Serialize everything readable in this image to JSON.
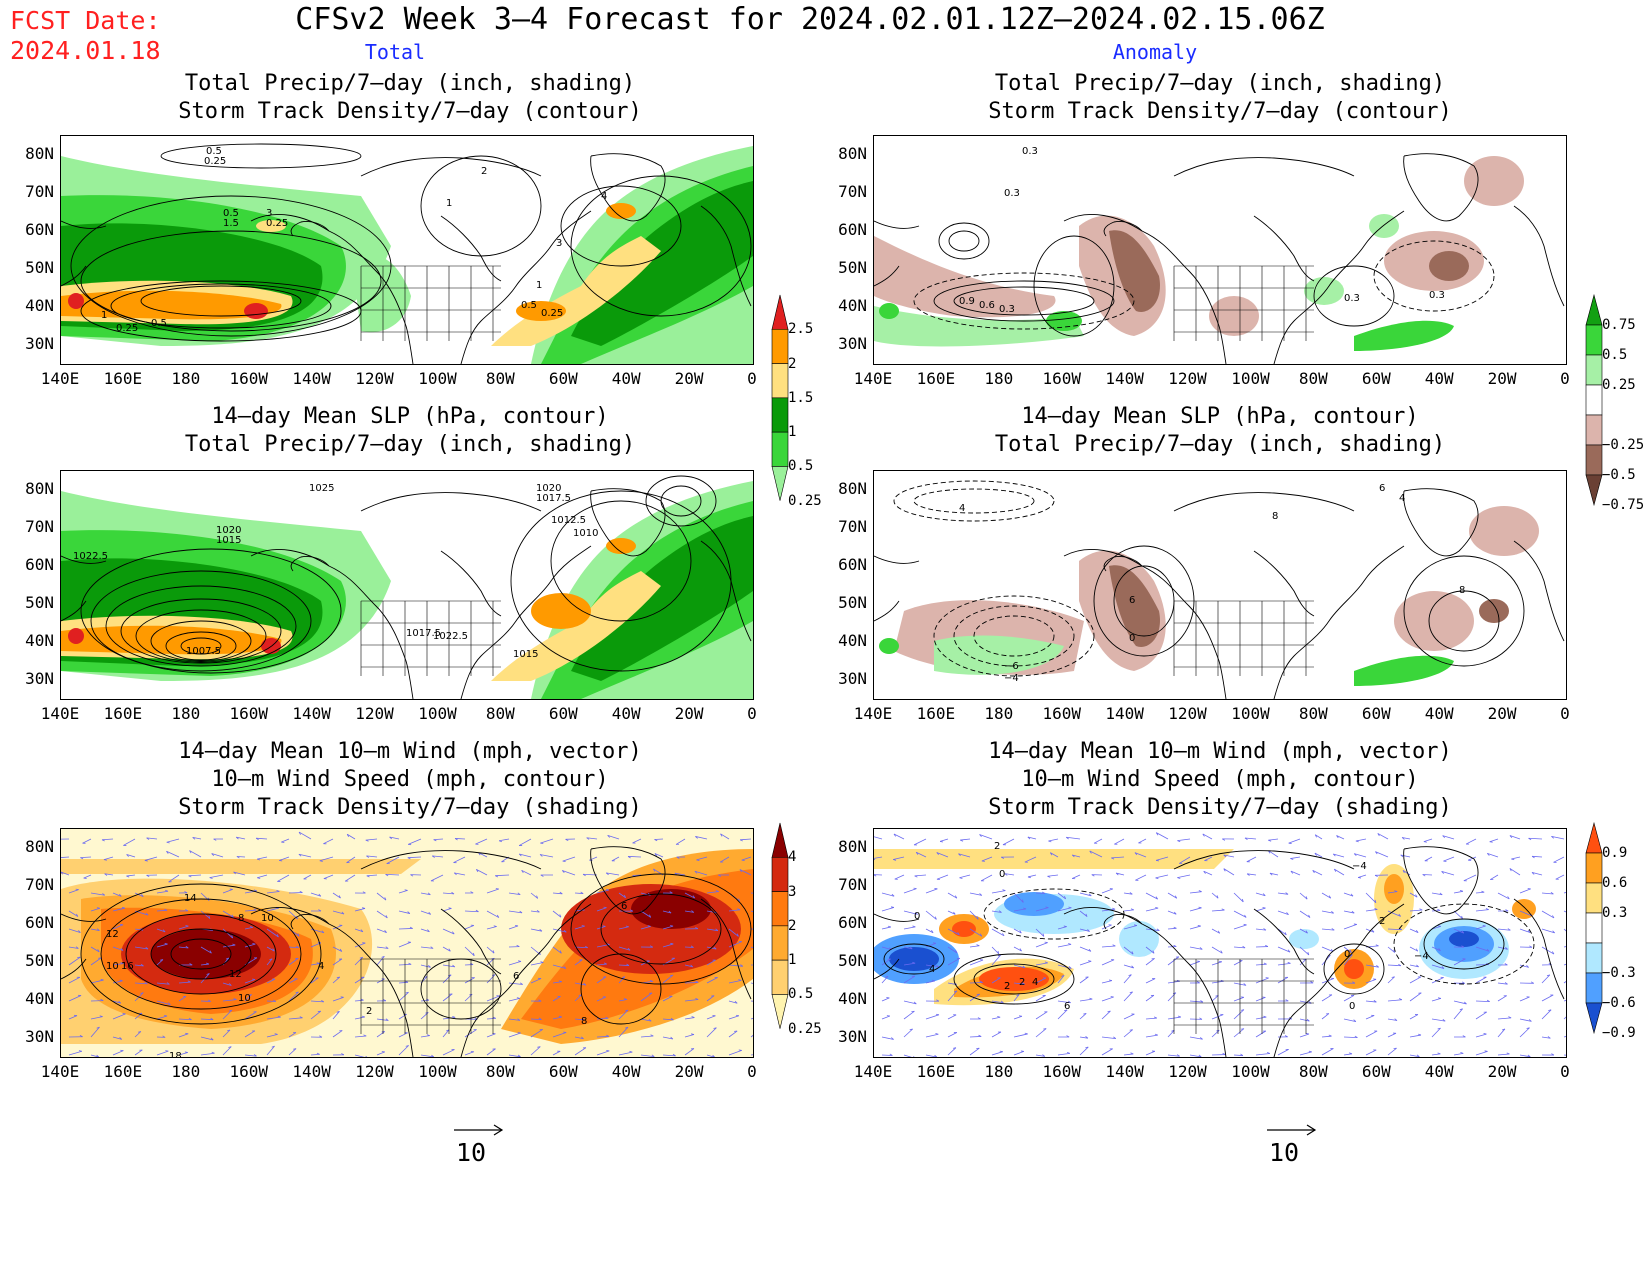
{
  "header": {
    "fcst_label": "FCST Date:",
    "fcst_date": "2024.01.18",
    "title": "CFSv2 Week 3–4 Forecast for 2024.02.01.12Z–2024.02.15.06Z",
    "col_total": "Total",
    "col_anomaly": "Anomaly"
  },
  "axes": {
    "lat_labels": [
      "80N",
      "70N",
      "60N",
      "50N",
      "40N",
      "30N"
    ],
    "lon_labels": [
      "140E",
      "160E",
      "180",
      "160W",
      "140W",
      "120W",
      "100W",
      "80W",
      "60W",
      "40W",
      "20W",
      "0"
    ]
  },
  "panels": {
    "p1": {
      "line1": "Total Precip/7–day (inch, shading)",
      "line2": "Storm Track Density/7–day (contour)"
    },
    "p2": {
      "line1": "Total Precip/7–day (inch, shading)",
      "line2": "Storm Track Density/7–day (contour)"
    },
    "p3": {
      "line1": "14–day Mean SLP (hPa, contour)",
      "line2": "Total Precip/7–day (inch, shading)"
    },
    "p4": {
      "line1": "14–day Mean SLP (hPa, contour)",
      "line2": "Total Precip/7–day (inch, shading)"
    },
    "p5": {
      "line1": "14–day Mean 10–m Wind (mph, vector)",
      "line2": "10–m Wind Speed (mph, contour)",
      "line3": "Storm Track Density/7–day (shading)"
    },
    "p6": {
      "line1": "14–day Mean 10–m Wind (mph, vector)",
      "line2": "10–m Wind Speed (mph, contour)",
      "line3": "Storm Track Density/7–day (shading)"
    }
  },
  "colorbars": {
    "precip_total": {
      "labels": [
        "2.5",
        "2",
        "1.5",
        "1",
        "0.5",
        "0.25"
      ],
      "colors": [
        "#e02020",
        "#ff9a00",
        "#ffe080",
        "#0a9a0a",
        "#3ad63a",
        "#9af09a"
      ]
    },
    "precip_anom": {
      "labels": [
        "0.75",
        "0.5",
        "0.25",
        "−0.25",
        "−0.5",
        "−0.75"
      ],
      "colors": [
        "#12a012",
        "#3ad63a",
        "#a6f0a6",
        "#ffffff",
        "#dcb4ac",
        "#9a6a5a",
        "#6a4034"
      ]
    },
    "storm_total": {
      "labels": [
        "4",
        "3",
        "2",
        "1",
        "0.5",
        "0.25"
      ],
      "colors": [
        "#8a0000",
        "#d42a10",
        "#ff7a10",
        "#ffaa30",
        "#ffd070",
        "#fff4b0"
      ]
    },
    "storm_anom": {
      "labels": [
        "0.9",
        "0.6",
        "0.3",
        "−0.3",
        "−0.6",
        "−0.9"
      ],
      "colors": [
        "#ff5010",
        "#ffa020",
        "#ffe080",
        "#ffffff",
        "#b0e8ff",
        "#50a0ff",
        "#1a50d0"
      ]
    }
  },
  "reference_vector": {
    "label_left": "10",
    "label_right": "10"
  },
  "contour_labels": {
    "p1": [
      "0.5",
      "0.25",
      "0.5",
      "1.5",
      "3",
      "0.25",
      "1",
      "2",
      "4",
      "3",
      "1",
      "0.5",
      "0.25",
      "1",
      "0.25",
      "0.5"
    ],
    "p2": [
      "0.3",
      "0.3",
      "0.9",
      "0.6",
      "0.3",
      "0.3",
      "0.3"
    ],
    "p3": [
      "1025",
      "1020",
      "1017.5",
      "1012.5",
      "1010",
      "1020",
      "1015",
      "1022.5",
      "1017.5",
      "1022.5",
      "1015",
      "1007.5"
    ],
    "p4": [
      "4",
      "6",
      "4",
      "8",
      "6",
      "0",
      "8",
      "−6",
      "−4"
    ],
    "p5": [
      "14",
      "12",
      "10",
      "16",
      "12",
      "10",
      "8",
      "4",
      "6",
      "10",
      "8",
      "6",
      "18",
      "2"
    ],
    "p6": [
      "2",
      "0",
      "0",
      "2",
      "4",
      "2",
      "4",
      "−4",
      "0",
      "−4",
      "6",
      "0",
      "2"
    ]
  }
}
